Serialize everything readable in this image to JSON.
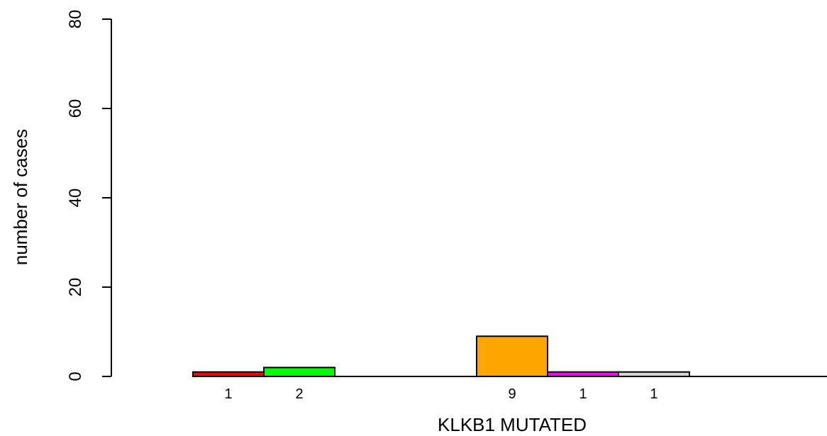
{
  "chart_data": {
    "type": "bar",
    "xlabel": "KLKB1 MUTATED",
    "ylabel": "number of cases",
    "ylim": [
      0,
      80
    ],
    "yticks": [
      0,
      20,
      40,
      60,
      80
    ],
    "grid": false,
    "bars": [
      {
        "slot": 0,
        "value": 1,
        "label": "1",
        "color": "#ff0000"
      },
      {
        "slot": 1,
        "value": 2,
        "label": "2",
        "color": "#00ff00"
      },
      {
        "slot": 2,
        "value": 0,
        "label": "",
        "color": "#0000ff"
      },
      {
        "slot": 4,
        "value": 9,
        "label": "9",
        "color": "#ffa500"
      },
      {
        "slot": 5,
        "value": 1,
        "label": "1",
        "color": "#ff00ff"
      },
      {
        "slot": 6,
        "value": 1,
        "label": "1",
        "color": "#d3d3d3"
      },
      {
        "slot": 7,
        "value": 0,
        "label": "",
        "color": "#ffffff"
      },
      {
        "slot": 8,
        "value": 0,
        "label": "",
        "color": "#ffffff"
      }
    ]
  }
}
